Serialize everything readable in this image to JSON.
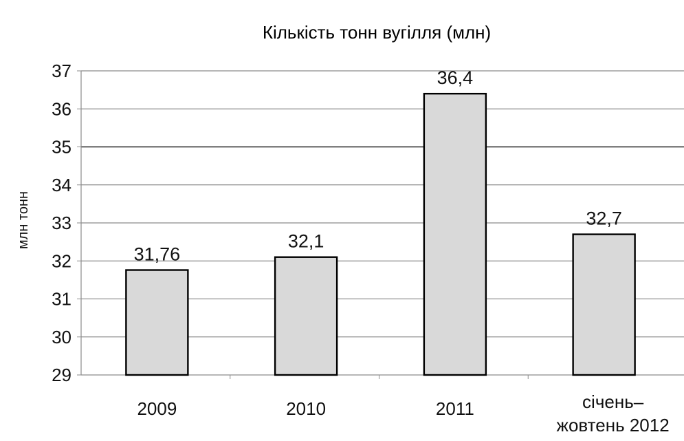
{
  "chart_data": {
    "type": "bar",
    "title": "Кількість тонн вугілля (млн)",
    "xlabel": "",
    "ylabel": "млн тонн",
    "categories": [
      [
        "2009"
      ],
      [
        "2010"
      ],
      [
        "2011"
      ],
      [
        "січень–",
        "жовтень 2012"
      ]
    ],
    "values": [
      31.76,
      32.1,
      36.4,
      32.7
    ],
    "data_labels": [
      "31,76",
      "32,1",
      "36,4",
      "32,7"
    ],
    "ylim": [
      29,
      37
    ],
    "yticks": [
      29,
      30,
      31,
      32,
      33,
      34,
      35,
      36,
      37
    ],
    "grid": true,
    "colors": {
      "bar_fill": "#d9d9d9",
      "bar_stroke": "#000000",
      "grid": "#6e6e6e",
      "axis": "#8a8a8a"
    }
  }
}
